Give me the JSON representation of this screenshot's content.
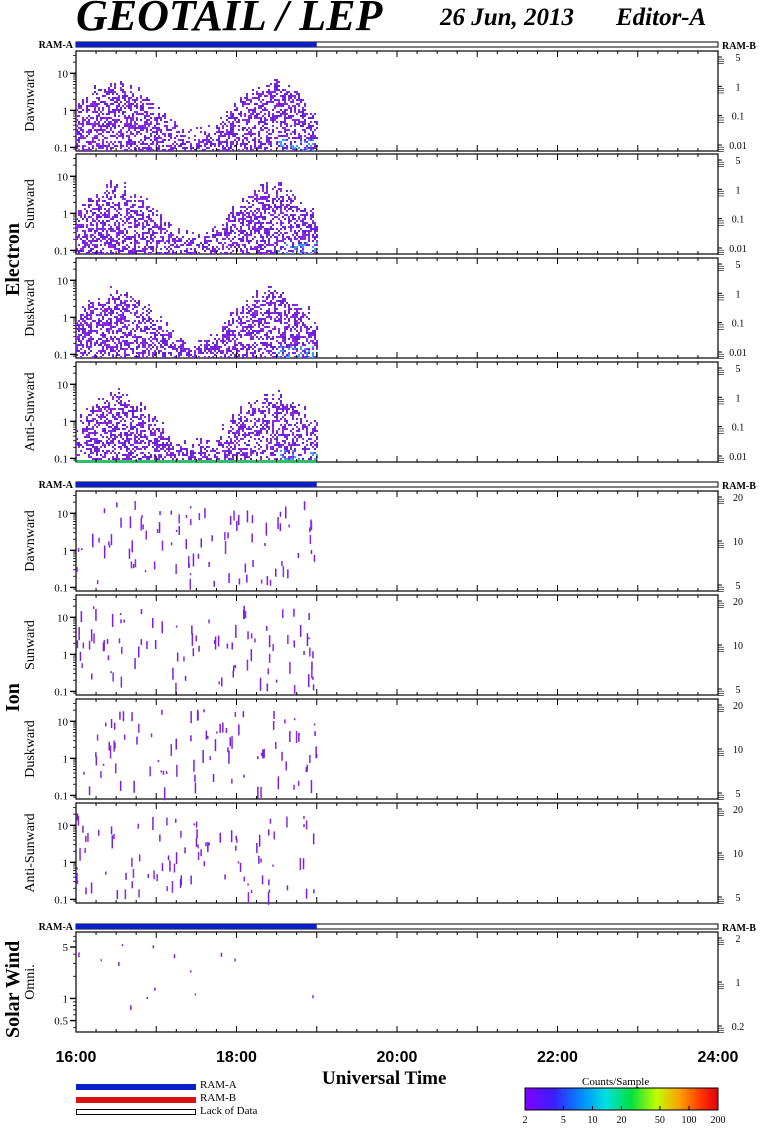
{
  "header": {
    "title": "GEOTAIL / LEP",
    "date": "26 Jun, 2013",
    "editor": "Editor-A"
  },
  "groups": {
    "electron": "Electron",
    "ion": "Ion",
    "solar_wind": "Solar Wind"
  },
  "xaxis": {
    "title": "Universal Time",
    "ticks": [
      "16:00",
      "18:00",
      "20:00",
      "22:00",
      "24:00"
    ],
    "range_hours": [
      16,
      24
    ]
  },
  "bar_labels": {
    "left": "RAM-A",
    "right": "RAM-B"
  },
  "legend": {
    "ram_a": "RAM-A",
    "ram_b": "RAM-B",
    "lack": "Lack of Data"
  },
  "colorbar": {
    "title": "Counts/Sample",
    "ticks": [
      "2",
      "5",
      "10",
      "20",
      "50",
      "100",
      "200"
    ]
  },
  "colors": {
    "ram_a": "#0a1fc8",
    "ram_b": "#d81010",
    "low_counts": "#8a2be2",
    "mid_counts": "#3aa0ff",
    "green_strip": "#2fbf6a"
  },
  "chart_data": [
    {
      "type": "heatmap",
      "group": "Electron",
      "panel": "Dawnward",
      "y_ticks_left": [
        "10",
        "1",
        "0.1"
      ],
      "y_ticks_right": [
        "5",
        "1",
        "0.1",
        "0.01"
      ],
      "data_extent_hours": [
        16,
        19
      ],
      "typical_counts": "2-10"
    },
    {
      "type": "heatmap",
      "group": "Electron",
      "panel": "Sunward",
      "y_ticks_left": [
        "10",
        "1",
        "0.1"
      ],
      "y_ticks_right": [
        "5",
        "1",
        "0.1",
        "0.01"
      ],
      "data_extent_hours": [
        16,
        19
      ],
      "typical_counts": "2-10"
    },
    {
      "type": "heatmap",
      "group": "Electron",
      "panel": "Duskward",
      "y_ticks_left": [
        "10",
        "1",
        "0.1"
      ],
      "y_ticks_right": [
        "5",
        "1",
        "0.1",
        "0.01"
      ],
      "data_extent_hours": [
        16,
        19
      ],
      "typical_counts": "2-10"
    },
    {
      "type": "heatmap",
      "group": "Electron",
      "panel": "Anti-Sunward",
      "y_ticks_left": [
        "10",
        "1",
        "0.1"
      ],
      "y_ticks_right": [
        "5",
        "1",
        "0.1",
        "0.01"
      ],
      "data_extent_hours": [
        16,
        19
      ],
      "typical_counts": "2-10"
    },
    {
      "type": "heatmap",
      "group": "Ion",
      "panel": "Dawnward",
      "y_ticks_left": [
        "10",
        "1",
        "0.1"
      ],
      "y_ticks_right": [
        "20",
        "10",
        "5"
      ],
      "data_extent_hours": [
        16,
        19
      ],
      "typical_counts": "2-5"
    },
    {
      "type": "heatmap",
      "group": "Ion",
      "panel": "Sunward",
      "y_ticks_left": [
        "10",
        "1",
        "0.1"
      ],
      "y_ticks_right": [
        "20",
        "10",
        "5"
      ],
      "data_extent_hours": [
        16,
        19
      ],
      "typical_counts": "2-5"
    },
    {
      "type": "heatmap",
      "group": "Ion",
      "panel": "Duskward",
      "y_ticks_left": [
        "10",
        "1",
        "0.1"
      ],
      "y_ticks_right": [
        "20",
        "10",
        "5"
      ],
      "data_extent_hours": [
        16,
        19
      ],
      "typical_counts": "2-5"
    },
    {
      "type": "heatmap",
      "group": "Ion",
      "panel": "Anti-Sunward",
      "y_ticks_left": [
        "10",
        "1",
        "0.1"
      ],
      "y_ticks_right": [
        "20",
        "10",
        "5"
      ],
      "data_extent_hours": [
        16,
        19
      ],
      "typical_counts": "2-5"
    },
    {
      "type": "heatmap",
      "group": "Solar Wind",
      "panel": "Omni.",
      "y_ticks_left": [
        "5",
        "1",
        "0.5"
      ],
      "y_ticks_right": [
        "2",
        "1",
        "0.2"
      ],
      "data_extent_hours": [
        16,
        19
      ],
      "typical_counts": "2-5"
    }
  ]
}
